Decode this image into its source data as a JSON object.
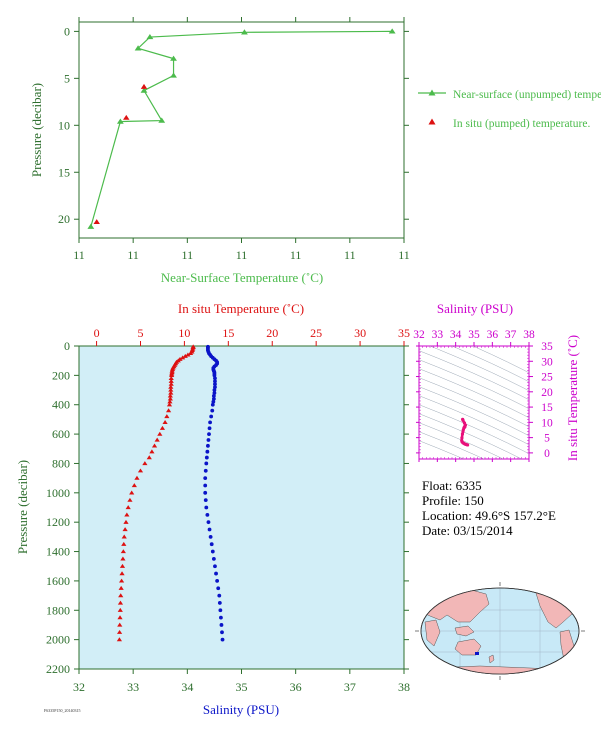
{
  "colors": {
    "near_surface": "#4cbb4c",
    "in_situ": "#dd1111",
    "salinity": "#0a14c8",
    "ts_magenta": "#cc00cc",
    "ts_trace": "#e8107a",
    "axis_green": "#2e6f2e",
    "panel_bg": "#d2eef7",
    "land": "#f2b7b7",
    "ocean": "#c8e9f7"
  },
  "float_info": {
    "float": "Float: 6335",
    "profile": "Profile: 150",
    "location": "Location: 49.6°S 157.2°E",
    "date": "Date: 03/15/2014"
  },
  "figure_id": "F6335P150_20140315",
  "chart_data": [
    {
      "type": "line",
      "xlabel": "Near-Surface Temperature (˚C)",
      "ylabel": "Pressure (decibar)",
      "xticklabels": [
        "11",
        "11",
        "11",
        "11",
        "11",
        "11",
        "11"
      ],
      "xlim": [
        10.9,
        11.45
      ],
      "ylim": [
        22,
        -1
      ],
      "yticks": [
        0,
        5,
        10,
        15,
        20
      ],
      "legend_position": "right",
      "series": [
        {
          "name": "Near-surface (unpumped) temperature.",
          "marker": "triangle",
          "x": [
            11.43,
            11.18,
            11.02,
            11.0,
            11.06,
            11.06,
            11.01,
            11.04,
            10.97,
            10.92
          ],
          "y": [
            0.0,
            0.1,
            0.6,
            1.8,
            2.9,
            4.7,
            6.3,
            9.5,
            9.6,
            20.8
          ]
        },
        {
          "name": "In situ (pumped) temperature.",
          "marker": "triangle",
          "x": [
            11.01,
            10.98,
            10.93
          ],
          "y": [
            5.9,
            9.2,
            20.3
          ]
        }
      ]
    },
    {
      "type": "scatter",
      "ylabel": "Pressure (decibar)",
      "x_top_label": "In situ Temperature (˚C)",
      "x_bottom_label": "Salinity (PSU)",
      "temperature_xlim": [
        -2,
        35
      ],
      "temperature_xticks": [
        0,
        5,
        10,
        15,
        20,
        25,
        30,
        35
      ],
      "salinity_xlim": [
        32,
        38
      ],
      "salinity_xticks": [
        32,
        33,
        34,
        35,
        36,
        37,
        38
      ],
      "ylim": [
        2200,
        0
      ],
      "yticks": [
        0,
        200,
        400,
        600,
        800,
        1000,
        1200,
        1400,
        1600,
        1800,
        2000,
        2200
      ],
      "temperature_profile": {
        "name": "In situ Temperature",
        "pressure": [
          5,
          10,
          20,
          30,
          40,
          50,
          60,
          70,
          80,
          90,
          100,
          110,
          120,
          130,
          140,
          150,
          160,
          170,
          180,
          190,
          200,
          220,
          240,
          260,
          280,
          300,
          320,
          340,
          360,
          380,
          400,
          440,
          480,
          520,
          560,
          600,
          640,
          680,
          720,
          760,
          800,
          850,
          900,
          950,
          1000,
          1050,
          1100,
          1150,
          1200,
          1250,
          1300,
          1350,
          1400,
          1450,
          1500,
          1550,
          1600,
          1650,
          1700,
          1750,
          1800,
          1850,
          1900,
          1950,
          2000
        ],
        "values": [
          11.0,
          11.0,
          10.95,
          10.9,
          10.85,
          10.7,
          10.4,
          10.1,
          9.8,
          9.5,
          9.3,
          9.1,
          9.0,
          8.9,
          8.8,
          8.7,
          8.65,
          8.6,
          8.6,
          8.55,
          8.55,
          8.5,
          8.5,
          8.5,
          8.45,
          8.45,
          8.45,
          8.4,
          8.4,
          8.35,
          8.3,
          8.2,
          8.0,
          7.8,
          7.5,
          7.2,
          6.9,
          6.6,
          6.3,
          6.0,
          5.5,
          5.0,
          4.6,
          4.3,
          4.0,
          3.8,
          3.6,
          3.45,
          3.35,
          3.25,
          3.15,
          3.1,
          3.05,
          3.0,
          2.95,
          2.9,
          2.85,
          2.8,
          2.75,
          2.72,
          2.7,
          2.67,
          2.64,
          2.62,
          2.6
        ]
      },
      "salinity_profile": {
        "name": "Salinity",
        "pressure": [
          5,
          10,
          20,
          30,
          40,
          50,
          60,
          70,
          80,
          90,
          100,
          110,
          120,
          130,
          140,
          150,
          160,
          170,
          180,
          190,
          200,
          220,
          240,
          260,
          280,
          300,
          320,
          340,
          360,
          380,
          400,
          440,
          480,
          520,
          560,
          600,
          640,
          680,
          720,
          760,
          800,
          850,
          900,
          950,
          1000,
          1050,
          1100,
          1150,
          1200,
          1250,
          1300,
          1350,
          1400,
          1450,
          1500,
          1550,
          1600,
          1650,
          1700,
          1750,
          1800,
          1850,
          1900,
          1950,
          2000
        ],
        "values": [
          34.38,
          34.38,
          34.38,
          34.38,
          34.39,
          34.4,
          34.42,
          34.44,
          34.47,
          34.5,
          34.53,
          34.55,
          34.55,
          34.53,
          34.5,
          34.48,
          34.48,
          34.49,
          34.5,
          34.5,
          34.5,
          34.51,
          34.51,
          34.51,
          34.51,
          34.5,
          34.5,
          34.49,
          34.49,
          34.48,
          34.47,
          34.46,
          34.44,
          34.42,
          34.41,
          34.4,
          34.39,
          34.38,
          34.37,
          34.36,
          34.35,
          34.34,
          34.33,
          34.33,
          34.33,
          34.34,
          34.35,
          34.37,
          34.39,
          34.41,
          34.43,
          34.45,
          34.47,
          34.49,
          34.51,
          34.53,
          34.55,
          34.57,
          34.59,
          34.6,
          34.61,
          34.62,
          34.63,
          34.64,
          34.65
        ]
      }
    },
    {
      "type": "scatter",
      "xlabel": "Salinity (PSU)",
      "ylabel": "In situ Temperature (˚C)",
      "xticks": [
        32,
        33,
        34,
        35,
        36,
        37,
        38
      ],
      "yticks": [
        0,
        5,
        10,
        15,
        20,
        25,
        30,
        35
      ],
      "xlim": [
        32,
        38
      ],
      "ylim": [
        -2,
        35
      ],
      "ts_points": {
        "salinity": [
          34.38,
          34.4,
          34.48,
          34.53,
          34.5,
          34.5,
          34.48,
          34.45,
          34.42,
          34.4,
          34.37,
          34.34,
          34.33,
          34.35,
          34.4,
          34.45,
          34.5,
          34.55,
          34.6,
          34.65
        ],
        "temperature": [
          11.0,
          10.7,
          9.8,
          9.1,
          8.7,
          8.5,
          8.4,
          8.2,
          7.6,
          7.0,
          6.2,
          4.9,
          4.0,
          3.6,
          3.3,
          3.1,
          2.9,
          2.8,
          2.7,
          2.6
        ]
      }
    }
  ]
}
